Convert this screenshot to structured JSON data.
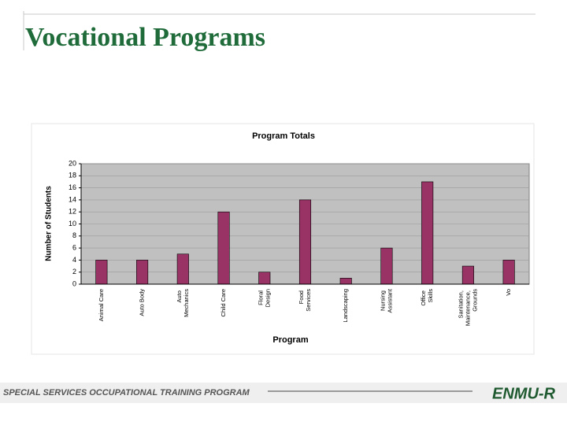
{
  "slide": {
    "title": "Vocational Programs",
    "footer": "SPECIAL SERVICES OCCUPATIONAL TRAINING PROGRAM",
    "logo": "ENMU-R"
  },
  "chart_data": {
    "type": "bar",
    "title": "Program Totals",
    "x_label": "Program",
    "y_label": "Number of Students",
    "categories": [
      "Animal Care",
      "Auto Body",
      "Auto Mechanics",
      "Child Care",
      "Floral Design",
      "Food Services",
      "Landscaping",
      "Nursing Assistant",
      "Office Skills",
      "Sanitation, Maintenance, Grounds",
      "Vo"
    ],
    "values": [
      4,
      4,
      5,
      12,
      2,
      14,
      1,
      6,
      17,
      3,
      4
    ],
    "color": "#993366",
    "ylim": [
      0,
      20
    ],
    "yticks": [
      0,
      2,
      4,
      6,
      8,
      10,
      12,
      14,
      16,
      18,
      20
    ],
    "grid": true
  }
}
